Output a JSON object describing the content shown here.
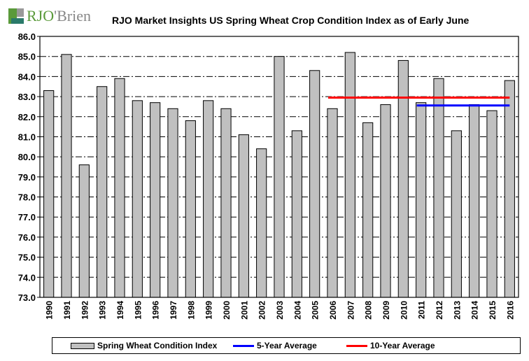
{
  "logo": {
    "text_a": "RJO",
    "text_b": "'Brien"
  },
  "chart_data": {
    "type": "bar",
    "title": "RJO Market Insights US Spring Wheat Crop Condition Index as of Early June",
    "xlabel": "",
    "ylabel": "",
    "ylim": [
      73,
      86
    ],
    "yticks": [
      "73.0",
      "74.0",
      "75.0",
      "76.0",
      "77.0",
      "78.0",
      "79.0",
      "80.0",
      "81.0",
      "82.0",
      "83.0",
      "84.0",
      "85.0",
      "86.0"
    ],
    "categories": [
      "1990",
      "1991",
      "1992",
      "1993",
      "1994",
      "1995",
      "1996",
      "1997",
      "1998",
      "1999",
      "2000",
      "2001",
      "2002",
      "2003",
      "2004",
      "2005",
      "2006",
      "2007",
      "2008",
      "2009",
      "2010",
      "2011",
      "2012",
      "2013",
      "2014",
      "2015",
      "2016"
    ],
    "series": [
      {
        "name": "Spring Wheat Condition Index",
        "type": "bar",
        "color": "#c0c0c0",
        "values": [
          83.3,
          85.1,
          79.6,
          83.5,
          83.9,
          82.8,
          82.7,
          82.4,
          81.8,
          82.8,
          82.4,
          81.1,
          80.4,
          85.0,
          81.3,
          84.3,
          82.4,
          85.2,
          81.7,
          82.6,
          84.8,
          82.7,
          83.9,
          81.3,
          82.6,
          82.3,
          83.8
        ]
      },
      {
        "name": "5-Year Average",
        "type": "line",
        "color": "#0000ff",
        "from": "2011",
        "to": "2016",
        "value": 82.56
      },
      {
        "name": "10-Year Average",
        "type": "line",
        "color": "#ff0000",
        "from": "2006",
        "to": "2016",
        "value": 82.95
      }
    ],
    "grid": true,
    "legend_placement": "bottom"
  }
}
